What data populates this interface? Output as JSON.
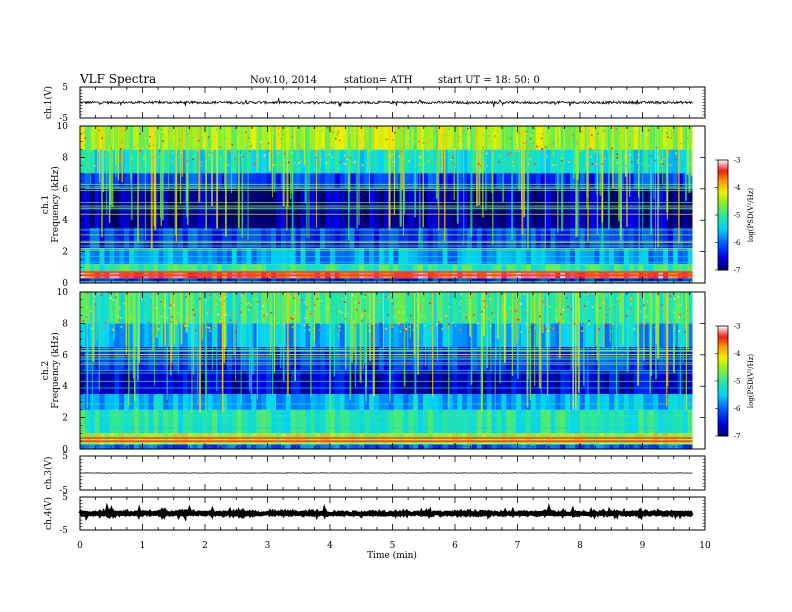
{
  "header": {
    "title": "VLF  Spectra",
    "date": "Nov.10, 2014",
    "station": "station= ATH",
    "start": "start  UT  =   18: 50: 0"
  },
  "x_axis": {
    "label": "Time  (min)",
    "ticks": [
      "0",
      "1",
      "2",
      "3",
      "4",
      "5",
      "6",
      "7",
      "8",
      "9",
      "10"
    ]
  },
  "chart_data": [
    {
      "type": "line",
      "name": "ch1-waveform",
      "ylabel": "ch.1(V)",
      "ylim": [
        -5,
        5
      ],
      "yticks": [
        "5",
        "-5"
      ],
      "xlim": [
        0,
        10
      ],
      "data_xmax": 9.8,
      "baseline": 0,
      "noise_amplitude": 0.4
    },
    {
      "type": "heatmap",
      "name": "ch1-spectrogram",
      "ylabel_lines": [
        "ch.1",
        "Frequency  (kHz)"
      ],
      "ylim": [
        0,
        10
      ],
      "yticks": [
        "0",
        "2",
        "4",
        "6",
        "8",
        "10"
      ],
      "xlim": [
        0,
        10
      ],
      "data_xmax": 9.8,
      "colorbar": {
        "label": "log(PSD(V²/Hz)",
        "range": [
          -7,
          -3
        ],
        "ticks": [
          "-3",
          "-4",
          "-5",
          "-6",
          "-7"
        ]
      },
      "bands_kHz": [
        {
          "from": 0.0,
          "to": 0.3,
          "level": -6.3
        },
        {
          "from": 0.3,
          "to": 0.7,
          "level": -3.4
        },
        {
          "from": 0.7,
          "to": 1.2,
          "level": -5.0
        },
        {
          "from": 1.2,
          "to": 2.2,
          "level": -5.7
        },
        {
          "from": 2.2,
          "to": 3.5,
          "level": -6.2
        },
        {
          "from": 3.5,
          "to": 6.0,
          "level": -6.8
        },
        {
          "from": 6.0,
          "to": 7.0,
          "level": -6.2
        },
        {
          "from": 7.0,
          "to": 8.5,
          "level": -5.3
        },
        {
          "from": 8.5,
          "to": 10.0,
          "level": -4.4
        }
      ]
    },
    {
      "type": "heatmap",
      "name": "ch2-spectrogram",
      "ylabel_lines": [
        "ch.2",
        "Frequency  (kHz)"
      ],
      "ylim": [
        0,
        10
      ],
      "yticks": [
        "0",
        "2",
        "4",
        "6",
        "8",
        "10"
      ],
      "xlim": [
        0,
        10
      ],
      "data_xmax": 9.8,
      "colorbar": {
        "label": "log(PSD(V²/Hz)",
        "range": [
          -7,
          -3
        ],
        "ticks": [
          "-3",
          "-4",
          "-5",
          "-6",
          "-7"
        ]
      },
      "bands_kHz": [
        {
          "from": 0.0,
          "to": 0.3,
          "level": -6.0
        },
        {
          "from": 0.3,
          "to": 1.0,
          "level": -4.2
        },
        {
          "from": 1.0,
          "to": 2.5,
          "level": -5.1
        },
        {
          "from": 2.5,
          "to": 3.5,
          "level": -5.6
        },
        {
          "from": 3.5,
          "to": 5.0,
          "level": -6.6
        },
        {
          "from": 5.0,
          "to": 6.5,
          "level": -6.3
        },
        {
          "from": 6.5,
          "to": 8.0,
          "level": -5.6
        },
        {
          "from": 8.0,
          "to": 10.0,
          "level": -5.0
        }
      ]
    },
    {
      "type": "line",
      "name": "ch3-waveform",
      "ylabel": "ch.3(V)",
      "ylim": [
        -5,
        5
      ],
      "yticks": [
        "5",
        "-5"
      ],
      "xlim": [
        0,
        10
      ],
      "data_xmax": 9.8,
      "baseline": 0,
      "noise_amplitude": 0.05
    },
    {
      "type": "line",
      "name": "ch4-waveform",
      "ylabel": "ch.4(V)",
      "ylim": [
        -5,
        5
      ],
      "yticks": [
        "5",
        "-5"
      ],
      "xlim": [
        0,
        10
      ],
      "data_xmax": 9.8,
      "baseline": 0,
      "noise_amplitude": 0.3
    }
  ]
}
